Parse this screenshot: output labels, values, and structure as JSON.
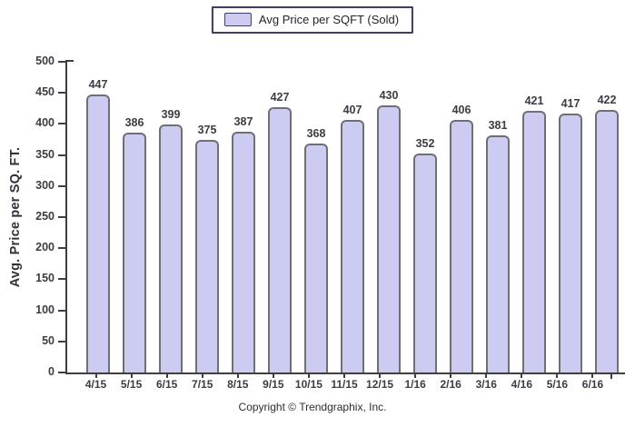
{
  "legend": {
    "label": "Avg Price per SQFT (Sold)"
  },
  "footer": {
    "copyright": "Copyright © Trendgraphix, Inc."
  },
  "colors": {
    "bar_fill": "#ccccf2",
    "bar_border": "#6e6e74",
    "axis": "#3f3f3f",
    "text": "#3c3c44",
    "legend_border": "#3c3c64"
  },
  "chart_data": {
    "type": "bar",
    "title": "",
    "legend_label": "Avg Price per SQFT (Sold)",
    "legend_position": "top-center",
    "categories": [
      "4/15",
      "5/15",
      "6/15",
      "7/15",
      "8/15",
      "9/15",
      "10/15",
      "11/15",
      "12/15",
      "1/16",
      "2/16",
      "3/16",
      "4/16",
      "5/16",
      "6/16"
    ],
    "values": [
      447,
      386,
      399,
      375,
      387,
      427,
      368,
      407,
      430,
      352,
      406,
      381,
      421,
      417,
      422
    ],
    "xlabel": "",
    "ylabel": "Avg. Price per SQ. FT.",
    "ylim": [
      0,
      500
    ],
    "yticks": [
      500,
      450,
      400,
      350,
      300,
      250,
      200,
      150,
      100,
      50,
      0
    ],
    "grid": false
  }
}
